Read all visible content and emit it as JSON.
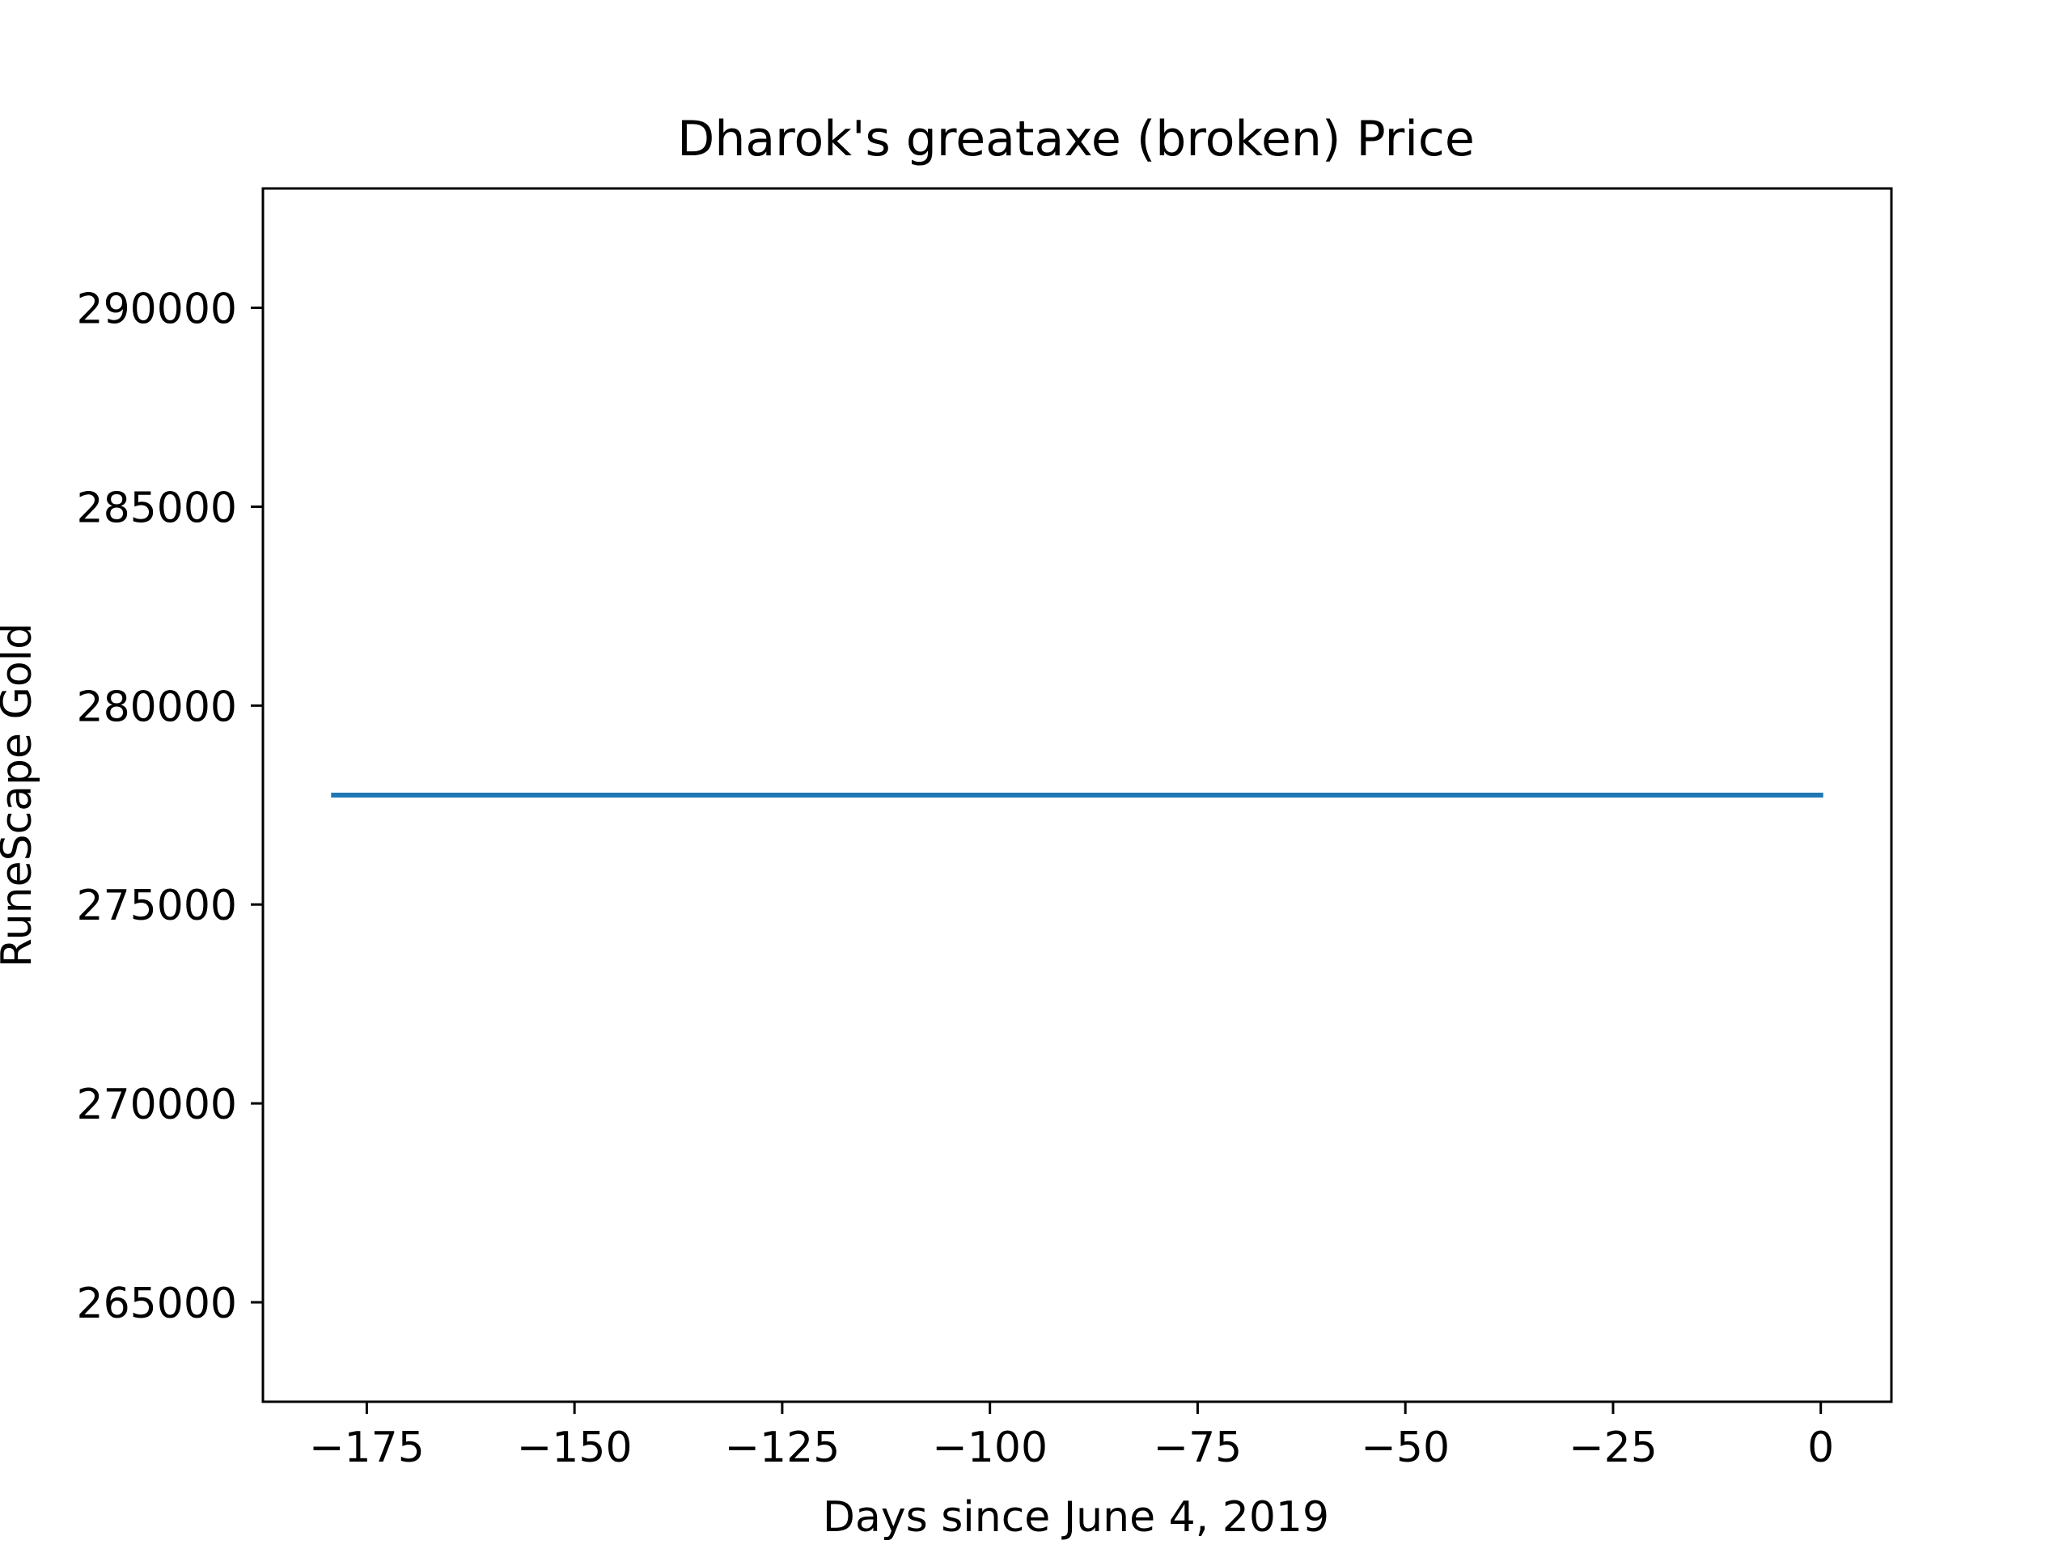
{
  "chart_data": {
    "type": "line",
    "title": "Dharok's greataxe (broken) Price",
    "xlabel": "Days since June 4, 2019",
    "ylabel": "RuneScape Gold",
    "xlim": [
      -187.5,
      8.5
    ],
    "ylim": [
      262500,
      293000
    ],
    "xticks": [
      -175,
      -150,
      -125,
      -100,
      -75,
      -50,
      -25,
      0
    ],
    "xtick_labels": [
      "−175",
      "−150",
      "−125",
      "−100",
      "−75",
      "−50",
      "−25",
      "0"
    ],
    "yticks": [
      265000,
      270000,
      275000,
      280000,
      285000,
      290000
    ],
    "ytick_labels": [
      "265000",
      "270000",
      "275000",
      "280000",
      "285000",
      "290000"
    ],
    "grid": false,
    "series": [
      {
        "x": [
          -179,
          0
        ],
        "y": [
          277750,
          277750
        ],
        "color": "#1f77b4"
      }
    ]
  }
}
